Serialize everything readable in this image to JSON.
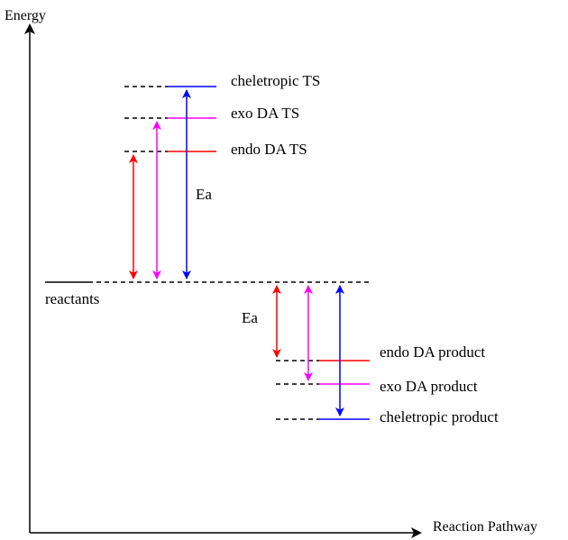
{
  "axes": {
    "y_label": "Energy",
    "x_label": "Reaction Pathway"
  },
  "levels": {
    "reactants": "reactants",
    "cheletropic_ts": "cheletropic TS",
    "exo_ts": "exo DA TS",
    "endo_ts": "endo DA TS",
    "endo_product": "endo DA product",
    "exo_product": "exo DA product",
    "cheletropic_product": "cheletropic product"
  },
  "annotations": {
    "ea_forward": "Ea",
    "ea_products": "Ea"
  },
  "colors": {
    "endo": "#ff0000",
    "exo": "#ff00ff",
    "cheletropic": "#0000ff",
    "reactants": "#000000",
    "axis": "#000000"
  }
}
